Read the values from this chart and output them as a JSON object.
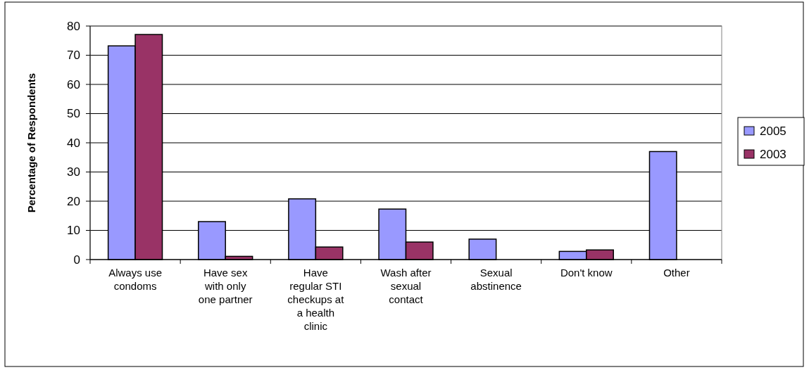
{
  "chart_data": {
    "type": "bar",
    "ylabel": "Percentage of Respondents",
    "categories": [
      "Always use condoms",
      "Have sex with only one partner",
      "Have regular STI checkups at a health clinic",
      "Wash after sexual contact",
      "Sexual abstinence",
      "Don't know",
      "Other"
    ],
    "series": [
      {
        "name": "2005",
        "color": "#9999ff",
        "values": [
          73.2,
          13,
          20.8,
          17.3,
          7,
          2.8,
          37
        ]
      },
      {
        "name": "2003",
        "color": "#993366",
        "values": [
          77.1,
          1.1,
          4.3,
          6,
          null,
          3.3,
          null
        ]
      }
    ],
    "ylim": [
      0,
      80
    ],
    "yticks": [
      0,
      10,
      20,
      30,
      40,
      50,
      60,
      70,
      80
    ],
    "grid": "y",
    "legend": "right"
  }
}
